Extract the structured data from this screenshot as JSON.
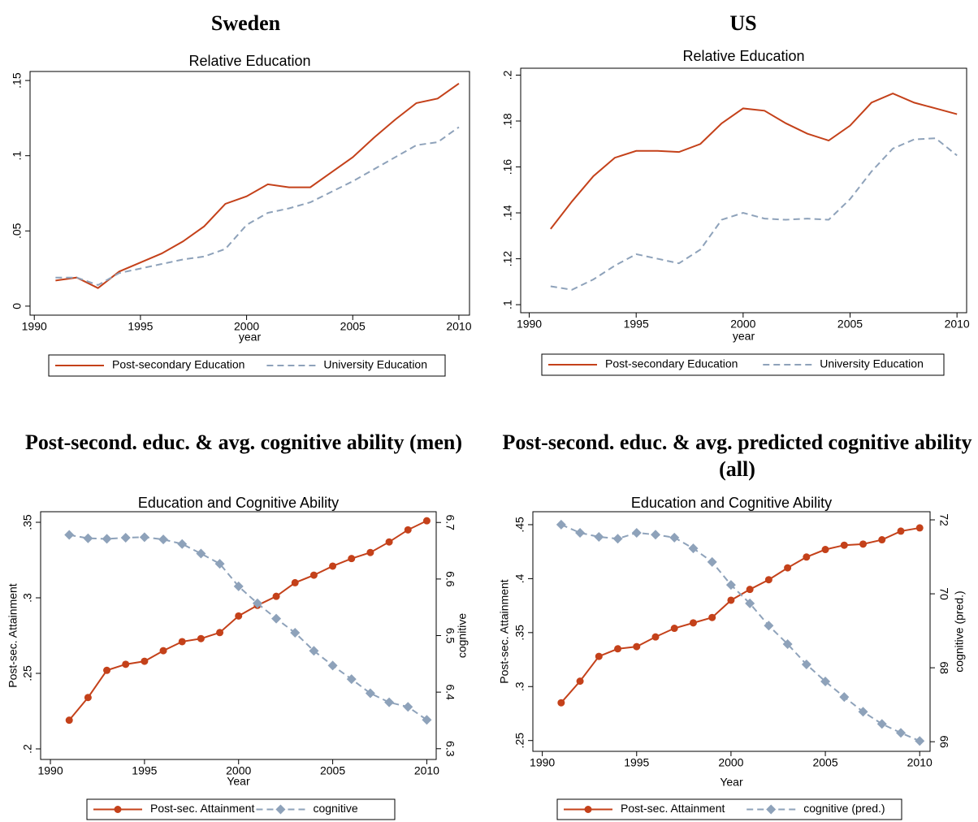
{
  "chart_data": [
    {
      "type": "line",
      "panel_title": "Sweden",
      "title": "Relative Education",
      "xlabel": "year",
      "x": [
        1991,
        1992,
        1993,
        1994,
        1995,
        1996,
        1997,
        1998,
        1999,
        2000,
        2001,
        2002,
        2003,
        2004,
        2005,
        2006,
        2007,
        2008,
        2009,
        2010
      ],
      "series": [
        {
          "name": "Post-secondary Education",
          "color": "#c4411a",
          "line_style": "solid",
          "values": [
            0.017,
            0.019,
            0.012,
            0.023,
            0.029,
            0.035,
            0.043,
            0.053,
            0.068,
            0.073,
            0.081,
            0.079,
            0.079,
            0.089,
            0.099,
            0.112,
            0.124,
            0.135,
            0.138,
            0.148
          ]
        },
        {
          "name": "University Education",
          "color": "#8ea2ba",
          "line_style": "dashed",
          "values": [
            0.019,
            0.019,
            0.014,
            0.022,
            0.025,
            0.028,
            0.031,
            0.033,
            0.038,
            0.054,
            0.062,
            0.065,
            0.069,
            0.076,
            0.083,
            0.091,
            0.099,
            0.107,
            0.109,
            0.119
          ]
        }
      ],
      "xlim": [
        1989.8,
        2010.5
      ],
      "xticks": [
        1990,
        1995,
        2000,
        2005,
        2010
      ],
      "ylim": [
        -0.006,
        0.156
      ],
      "yticks": [
        0,
        {
          "value": 0.05,
          "label": ".05"
        },
        {
          "value": 0.1,
          "label": ".1"
        },
        {
          "value": 0.15,
          "label": ".15"
        }
      ],
      "legend": "bottom"
    },
    {
      "type": "line",
      "panel_title": "US",
      "title": "Relative Education",
      "xlabel": "year",
      "x": [
        1991,
        1992,
        1993,
        1994,
        1995,
        1996,
        1997,
        1998,
        1999,
        2000,
        2001,
        2002,
        2003,
        2004,
        2005,
        2006,
        2007,
        2008,
        2009,
        2010
      ],
      "series": [
        {
          "name": "Post-secondary Education",
          "color": "#c4411a",
          "line_style": "solid",
          "values": [
            0.133,
            0.145,
            0.156,
            0.164,
            0.167,
            0.167,
            0.1665,
            0.17,
            0.179,
            0.1855,
            0.1845,
            0.179,
            0.1745,
            0.1715,
            0.178,
            0.188,
            0.192,
            0.188,
            0.1855,
            0.183
          ]
        },
        {
          "name": "University Education",
          "color": "#8ea2ba",
          "line_style": "dashed",
          "values": [
            0.108,
            0.1065,
            0.111,
            0.117,
            0.122,
            0.12,
            0.118,
            0.124,
            0.137,
            0.14,
            0.1375,
            0.137,
            0.1375,
            0.137,
            0.146,
            0.158,
            0.168,
            0.172,
            0.1725,
            0.165
          ]
        }
      ],
      "xlim": [
        1989.6,
        2010.45
      ],
      "xticks": [
        1990,
        1995,
        2000,
        2005,
        2010
      ],
      "ylim": [
        0.0965,
        0.203
      ],
      "yticks": [
        {
          "value": 0.1,
          "label": ".1"
        },
        {
          "value": 0.12,
          "label": ".12"
        },
        {
          "value": 0.14,
          "label": ".14"
        },
        {
          "value": 0.16,
          "label": ".16"
        },
        {
          "value": 0.18,
          "label": ".18"
        },
        {
          "value": 0.2,
          "label": ".2"
        }
      ],
      "legend": "bottom"
    },
    {
      "type": "line",
      "panel_title": "Post-second. educ. & avg. cognitive ability (men)",
      "title": "Education and Cognitive Ability",
      "xlabel": "Year",
      "ylabel": "Post-sec. Attainment",
      "y2label": "cognitive",
      "x": [
        1991,
        1992,
        1993,
        1994,
        1995,
        1996,
        1997,
        1998,
        1999,
        2000,
        2001,
        2002,
        2003,
        2004,
        2005,
        2006,
        2007,
        2008,
        2009,
        2010
      ],
      "series": [
        {
          "name": "Post-sec. Attainment",
          "color": "#c4411a",
          "line_style": "solid",
          "marker": "circle",
          "values": [
            0.219,
            0.234,
            0.252,
            0.256,
            0.258,
            0.265,
            0.271,
            0.273,
            0.277,
            0.288,
            0.295,
            0.301,
            0.31,
            0.315,
            0.321,
            0.326,
            0.33,
            0.337,
            0.345,
            0.351
          ]
        },
        {
          "name": "cognitive",
          "color": "#8ea2ba",
          "line_style": "dashed",
          "marker": "diamond",
          "axis": "y2",
          "values": [
            6.678,
            6.672,
            6.671,
            6.673,
            6.674,
            6.67,
            6.662,
            6.645,
            6.627,
            6.587,
            6.557,
            6.53,
            6.505,
            6.473,
            6.447,
            6.423,
            6.398,
            6.382,
            6.374,
            6.351
          ]
        }
      ],
      "xlim": [
        1989.48,
        2010.5
      ],
      "xticks": [
        1990,
        1995,
        2000,
        2005,
        2010
      ],
      "ylim": [
        0.193,
        0.357
      ],
      "yticks": [
        {
          "value": 0.2,
          "label": ".2"
        },
        {
          "value": 0.25,
          "label": ".25"
        },
        {
          "value": 0.3,
          "label": ".3"
        },
        {
          "value": 0.35,
          "label": ".35"
        }
      ],
      "y2lim": [
        6.281,
        6.719
      ],
      "y2ticks": [
        6.3,
        6.4,
        6.5,
        6.6,
        6.7
      ],
      "legend": "bottom"
    },
    {
      "type": "line",
      "panel_title": "Post-second. educ. & avg. predicted cognitive ability (all)",
      "title": "Education and Cognitive Ability",
      "xlabel": "Year",
      "ylabel": "Post-sec. Attainment",
      "y2label": "cognitive (pred.)",
      "x": [
        1991,
        1992,
        1993,
        1994,
        1995,
        1996,
        1997,
        1998,
        1999,
        2000,
        2001,
        2002,
        2003,
        2004,
        2005,
        2006,
        2007,
        2008,
        2009,
        2010
      ],
      "series": [
        {
          "name": "Post-sec. Attainment",
          "color": "#c4411a",
          "line_style": "solid",
          "marker": "circle",
          "values": [
            0.285,
            0.305,
            0.328,
            0.335,
            0.337,
            0.346,
            0.354,
            0.359,
            0.364,
            0.38,
            0.39,
            0.399,
            0.41,
            0.42,
            0.427,
            0.431,
            0.432,
            0.436,
            0.444,
            0.447
          ]
        },
        {
          "name": "cognitive (pred.)",
          "color": "#8ea2ba",
          "line_style": "dashed",
          "marker": "diamond",
          "axis": "y2",
          "values": [
            71.87,
            71.65,
            71.54,
            71.49,
            71.65,
            71.6,
            71.52,
            71.23,
            70.86,
            70.24,
            69.74,
            69.14,
            68.64,
            68.09,
            67.63,
            67.21,
            66.81,
            66.48,
            66.24,
            66.02
          ]
        }
      ],
      "xlim": [
        1989.5,
        2010.55
      ],
      "xticks": [
        1990,
        1995,
        2000,
        2005,
        2010
      ],
      "ylim": [
        0.24,
        0.462
      ],
      "yticks": [
        {
          "value": 0.25,
          "label": ".25"
        },
        {
          "value": 0.3,
          "label": ".3"
        },
        {
          "value": 0.35,
          "label": ".35"
        },
        {
          "value": 0.4,
          "label": ".4"
        },
        {
          "value": 0.45,
          "label": ".45"
        }
      ],
      "y2lim": [
        65.74,
        72.22
      ],
      "y2ticks": [
        66,
        68,
        70,
        72
      ],
      "legend": "bottom"
    }
  ]
}
